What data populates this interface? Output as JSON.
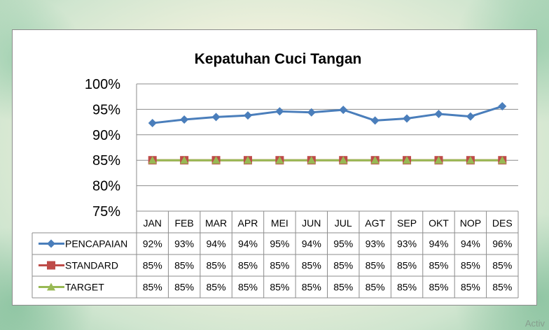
{
  "chart_data": {
    "type": "line",
    "title": "Kepatuhan Cuci Tangan",
    "categories": [
      "JAN",
      "FEB",
      "MAR",
      "APR",
      "MEI",
      "JUN",
      "JUL",
      "AGT",
      "SEP",
      "OKT",
      "NOP",
      "DES"
    ],
    "ylim": [
      75,
      100
    ],
    "yticks": [
      "75%",
      "80%",
      "85%",
      "90%",
      "95%",
      "100%"
    ],
    "grid": true,
    "legend": "data-table",
    "series": [
      {
        "name": "PENCAPAIAN",
        "color": "#4a7ebb",
        "marker": "diamond",
        "values": [
          92.3,
          93.0,
          93.5,
          93.8,
          94.6,
          94.4,
          94.9,
          92.8,
          93.2,
          94.1,
          93.6,
          95.6
        ],
        "labels": [
          "92%",
          "93%",
          "94%",
          "94%",
          "95%",
          "94%",
          "95%",
          "93%",
          "93%",
          "94%",
          "94%",
          "96%"
        ]
      },
      {
        "name": "STANDARD",
        "color": "#be4b48",
        "marker": "square",
        "values": [
          85,
          85,
          85,
          85,
          85,
          85,
          85,
          85,
          85,
          85,
          85,
          85
        ],
        "labels": [
          "85%",
          "85%",
          "85%",
          "85%",
          "85%",
          "85%",
          "85%",
          "85%",
          "85%",
          "85%",
          "85%",
          "85%"
        ]
      },
      {
        "name": "TARGET",
        "color": "#98b954",
        "marker": "triangle",
        "values": [
          85,
          85,
          85,
          85,
          85,
          85,
          85,
          85,
          85,
          85,
          85,
          85
        ],
        "labels": [
          "85%",
          "85%",
          "85%",
          "85%",
          "85%",
          "85%",
          "85%",
          "85%",
          "85%",
          "85%",
          "85%",
          "85%"
        ]
      }
    ]
  },
  "watermark": "Activ"
}
